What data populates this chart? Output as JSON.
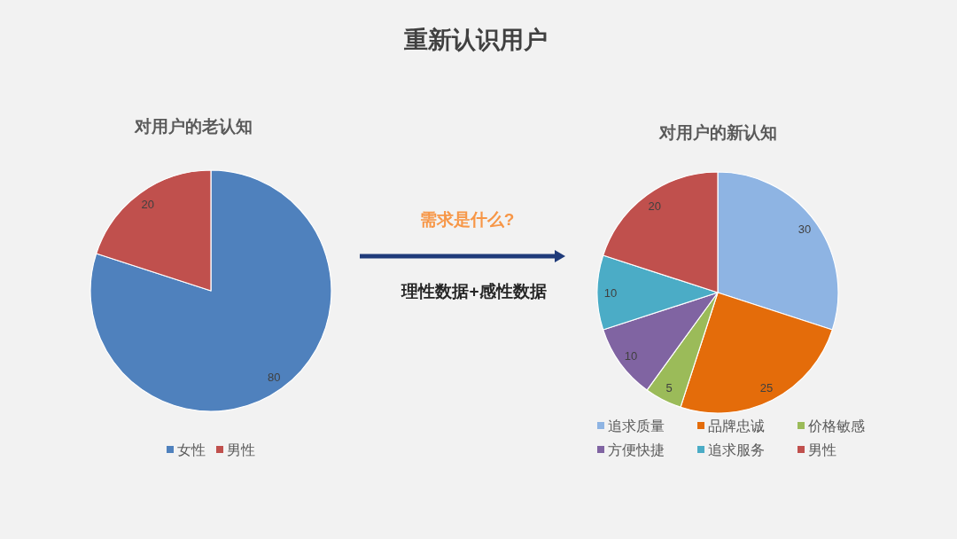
{
  "chart_data": [
    {
      "type": "other",
      "title": "重新认识用户"
    },
    {
      "type": "pie",
      "title": "对用户的老认知",
      "categories": [
        "女性",
        "男性"
      ],
      "values": [
        80,
        20
      ],
      "colors": [
        "#4f81bd",
        "#c0504d"
      ],
      "data_labels": true,
      "legend": "bottom"
    },
    {
      "type": "other",
      "annotations": [
        "需求是什么?",
        "理性数据+感性数据"
      ]
    },
    {
      "type": "pie",
      "title": "对用户的新认知",
      "categories": [
        "追求质量",
        "品牌忠诚",
        "价格敏感",
        "方便快捷",
        "追求服务",
        "男性"
      ],
      "values": [
        30,
        25,
        5,
        10,
        10,
        20
      ],
      "colors": [
        "#8eb4e3",
        "#e46c0a",
        "#9bbb59",
        "#8064a2",
        "#4bacc6",
        "#c0504d"
      ],
      "data_labels": true,
      "legend": "bottom"
    }
  ]
}
